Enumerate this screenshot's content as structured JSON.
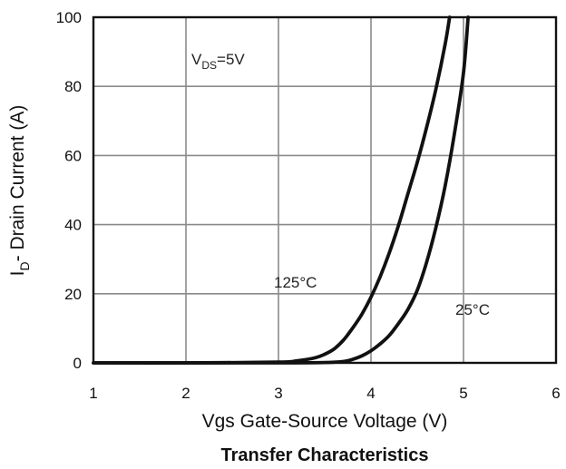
{
  "chart_data": {
    "type": "line",
    "title": "Transfer Characteristics",
    "xlabel": "Vgs Gate-Source Voltage (V)",
    "ylabel_main": "I",
    "ylabel_sub": "D",
    "ylabel_rest": "- Drain Current (A)",
    "xlim": [
      1,
      6
    ],
    "ylim": [
      0,
      100
    ],
    "grid": true,
    "x_ticks": [
      "1",
      "2",
      "3",
      "4",
      "5",
      "6"
    ],
    "y_ticks": [
      "0",
      "20",
      "40",
      "60",
      "80",
      "100"
    ],
    "annotation": {
      "main": "V",
      "sub": "DS",
      "rest": "=5V"
    },
    "series": [
      {
        "name": "125°C",
        "x": [
          1.0,
          2.0,
          3.0,
          3.2,
          3.4,
          3.5,
          3.6,
          3.7,
          3.8,
          3.9,
          4.0,
          4.1,
          4.2,
          4.3,
          4.4,
          4.5,
          4.6,
          4.7,
          4.8,
          4.85
        ],
        "y": [
          0,
          0,
          0.2,
          0.6,
          1.5,
          2.5,
          4.0,
          6.5,
          10,
          14,
          19,
          25,
          32,
          40,
          49,
          58,
          68,
          79,
          92,
          100
        ]
      },
      {
        "name": "25°C",
        "x": [
          1.0,
          2.0,
          3.0,
          3.5,
          3.7,
          3.8,
          3.9,
          4.0,
          4.1,
          4.2,
          4.3,
          4.4,
          4.5,
          4.6,
          4.7,
          4.8,
          4.9,
          5.0,
          5.05
        ],
        "y": [
          0,
          0,
          0,
          0.1,
          0.4,
          1.0,
          2.0,
          3.5,
          5.5,
          8.0,
          11.5,
          15.5,
          21,
          29,
          39,
          51,
          66,
          84,
          100
        ]
      }
    ]
  }
}
